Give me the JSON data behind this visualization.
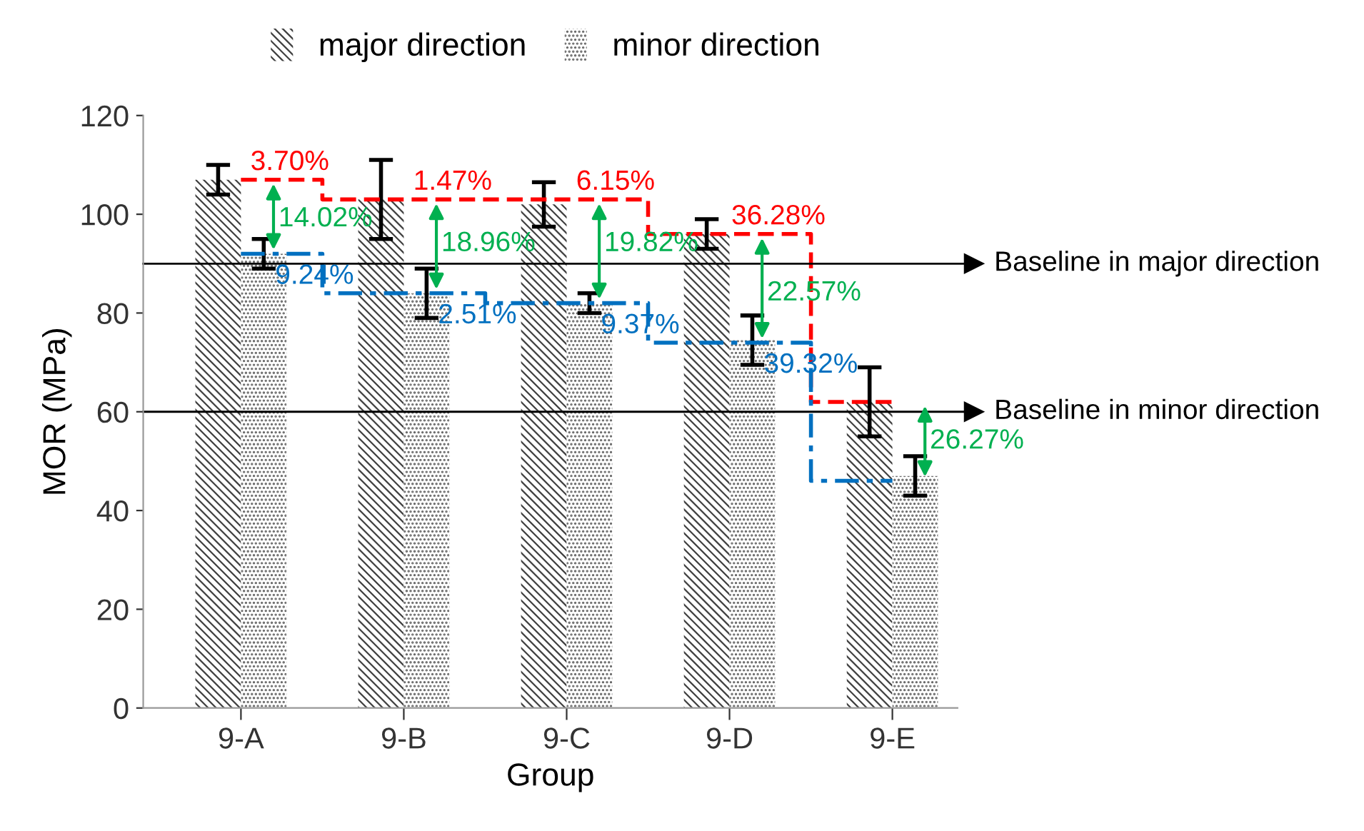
{
  "chart_data": {
    "type": "bar",
    "xlabel": "Group",
    "ylabel": "MOR (MPa)",
    "categories": [
      "9-A",
      "9-B",
      "9-C",
      "9-D",
      "9-E"
    ],
    "ylim": [
      0,
      120
    ],
    "yticks": [
      0,
      20,
      40,
      60,
      80,
      100,
      120
    ],
    "grid": false,
    "legend": "top",
    "series": [
      {
        "name": "major direction",
        "color": "#404040",
        "values": [
          107,
          103,
          102,
          96,
          62
        ],
        "errors": [
          3,
          8,
          4.5,
          3,
          7
        ]
      },
      {
        "name": "minor direction",
        "color": "#606060",
        "values": [
          92,
          84,
          82,
          74.5,
          47
        ],
        "errors": [
          3,
          5,
          2,
          5,
          4
        ]
      },
      {
        "type": "step",
        "color": "#ff0000",
        "line_style": "dashed",
        "values": [
          107,
          103,
          103,
          96,
          62
        ]
      },
      {
        "type": "step",
        "color": "#0070c0",
        "line_style": "dashdot",
        "values": [
          92,
          84,
          82,
          74,
          46
        ]
      }
    ],
    "ref_lines": [
      {
        "axis": "y",
        "value": 90,
        "label": "Baseline in major direction"
      },
      {
        "axis": "y",
        "value": 60,
        "label": "Baseline in minor direction"
      }
    ],
    "annotations": [
      {
        "text": "3.70%",
        "x": "9-A",
        "y": 107
      },
      {
        "text": "1.47%",
        "x": "9-B",
        "y": 103
      },
      {
        "text": "6.15%",
        "x": "9-C",
        "y": 103
      },
      {
        "text": "36.28%",
        "x": "9-D",
        "y": 96
      },
      {
        "text": "9.24%",
        "x": "9-A",
        "y": 92
      },
      {
        "text": "2.51%",
        "x": "9-B",
        "y": 84
      },
      {
        "text": "9.37%",
        "x": "9-C",
        "y": 82
      },
      {
        "text": "39.32%",
        "x": "9-D",
        "y": 74
      },
      {
        "text": "14.02%",
        "x": "9-A",
        "y": 99
      },
      {
        "text": "18.96%",
        "x": "9-B",
        "y": 94
      },
      {
        "text": "19.82%",
        "x": "9-C",
        "y": 94
      },
      {
        "text": "22.57%",
        "x": "9-D",
        "y": 84
      },
      {
        "text": "26.27%",
        "x": "9-E",
        "y": 54
      }
    ]
  }
}
